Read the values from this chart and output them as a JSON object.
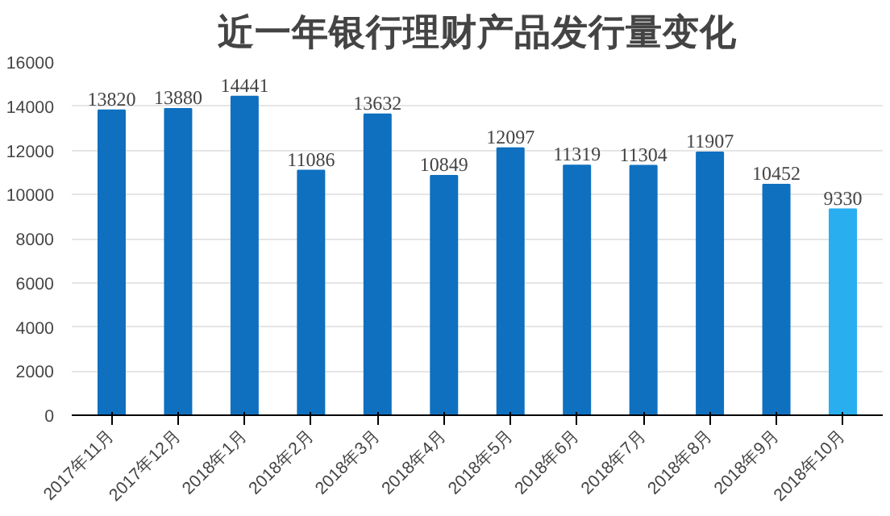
{
  "chart_data": {
    "type": "bar",
    "title": "近一年银行理财产品发行量变化",
    "categories": [
      "2017年11月",
      "2017年12月",
      "2018年1月",
      "2018年2月",
      "2018年3月",
      "2018年4月",
      "2018年5月",
      "2018年6月",
      "2018年7月",
      "2018年8月",
      "2018年9月",
      "2018年10月"
    ],
    "values": [
      13820,
      13880,
      14441,
      11086,
      13632,
      10849,
      12097,
      11319,
      11304,
      11907,
      10452,
      9330
    ],
    "colors": [
      "#0f70c0",
      "#0f70c0",
      "#0f70c0",
      "#0f70c0",
      "#0f70c0",
      "#0f70c0",
      "#0f70c0",
      "#0f70c0",
      "#0f70c0",
      "#0f70c0",
      "#0f70c0",
      "#29aef0"
    ],
    "data_labels": true,
    "ylim": [
      0,
      16000
    ],
    "yticks": [
      0,
      2000,
      4000,
      6000,
      8000,
      10000,
      12000,
      14000,
      16000
    ],
    "grid": "y"
  }
}
